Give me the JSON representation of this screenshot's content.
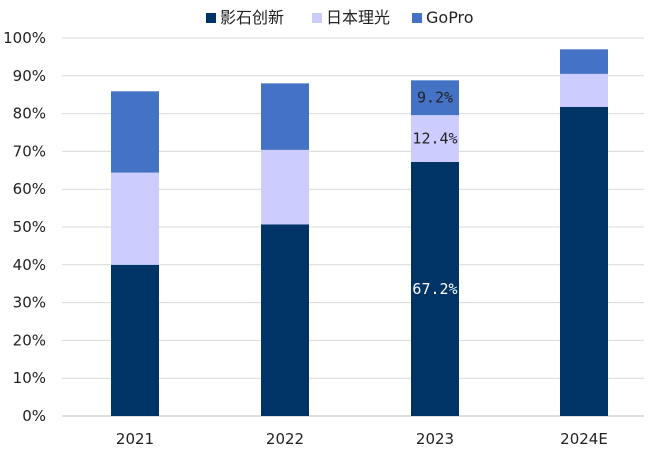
{
  "chart_data": {
    "type": "bar",
    "stacked": true,
    "categories": [
      "2021",
      "2022",
      "2023",
      "2024E"
    ],
    "series": [
      {
        "name": "影石创新",
        "color": "#003366",
        "values": [
          40.0,
          50.7,
          67.2,
          81.8
        ]
      },
      {
        "name": "日本理光",
        "color": "#CCCCFF",
        "values": [
          24.4,
          19.7,
          12.4,
          8.7
        ]
      },
      {
        "name": "GoPro",
        "color": "#4472C4",
        "values": [
          21.5,
          17.6,
          9.2,
          6.5
        ]
      }
    ],
    "data_labels": [
      {
        "category": "2023",
        "series": "影石创新",
        "text": "67.2%",
        "color": "#ffffff"
      },
      {
        "category": "2023",
        "series": "日本理光",
        "text": "12.4%",
        "color": "#222222"
      },
      {
        "category": "2023",
        "series": "GoPro",
        "text": "9.2%",
        "color": "#222222"
      }
    ],
    "ylim": [
      0,
      100
    ],
    "y_ticks": [
      0,
      10,
      20,
      30,
      40,
      50,
      60,
      70,
      80,
      90,
      100
    ],
    "y_tick_labels": [
      "0%",
      "10%",
      "20%",
      "30%",
      "40%",
      "50%",
      "60%",
      "70%",
      "80%",
      "90%",
      "100%"
    ],
    "grid": true,
    "legend_position": "top"
  }
}
